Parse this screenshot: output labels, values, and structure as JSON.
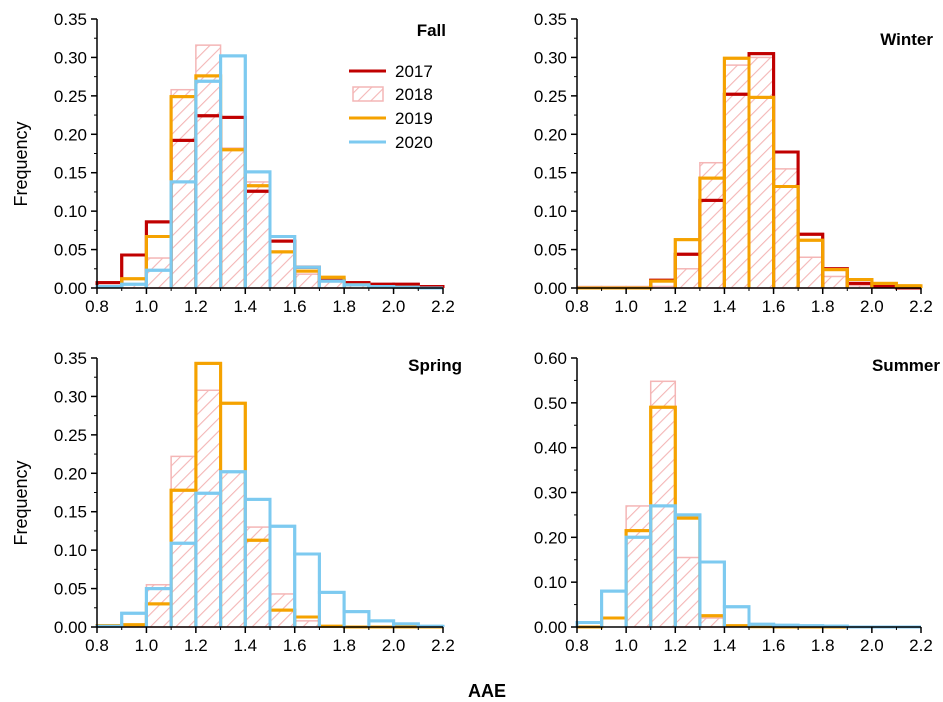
{
  "figure": {
    "xlabel": "AAE",
    "ylabel": "Frequency"
  },
  "colors": {
    "2017": "#c00000",
    "2018": "#f4b6b6",
    "2019": "#f5a200",
    "2020": "#7dcaf0"
  },
  "chart_data": [
    {
      "type": "bar",
      "title": "Fall",
      "xlim": [
        0.8,
        2.2
      ],
      "ylim": [
        0,
        0.35
      ],
      "xticks": [
        "0.8",
        "1.0",
        "1.2",
        "1.4",
        "1.6",
        "1.8",
        "2.0",
        "2.2"
      ],
      "yticks": [
        "0.00",
        "0.05",
        "0.10",
        "0.15",
        "0.20",
        "0.25",
        "0.30",
        "0.35"
      ],
      "bin_edges": [
        0.8,
        0.9,
        1.0,
        1.1,
        1.2,
        1.3,
        1.4,
        1.5,
        1.6,
        1.7,
        1.8,
        1.9,
        2.0,
        2.1,
        2.2
      ],
      "legend": [
        "2017",
        "2018",
        "2019",
        "2020"
      ],
      "series": [
        {
          "name": "2018",
          "values": [
            0.0,
            0.005,
            0.039,
            0.258,
            0.316,
            0.182,
            0.138,
            0.048,
            0.018,
            0.008,
            0.004,
            0.002,
            0.001,
            0.0
          ]
        },
        {
          "name": "2017",
          "values": [
            0.007,
            0.043,
            0.086,
            0.192,
            0.224,
            0.222,
            0.126,
            0.061,
            0.027,
            0.01,
            0.007,
            0.005,
            0.005,
            0.002
          ]
        },
        {
          "name": "2019",
          "values": [
            0.002,
            0.012,
            0.067,
            0.249,
            0.276,
            0.18,
            0.133,
            0.047,
            0.022,
            0.014,
            0.004,
            0.002,
            0.001,
            0.0
          ]
        },
        {
          "name": "2020",
          "values": [
            0.002,
            0.005,
            0.023,
            0.138,
            0.269,
            0.302,
            0.151,
            0.067,
            0.027,
            0.009,
            0.004,
            0.002,
            0.001,
            0.0
          ]
        }
      ]
    },
    {
      "type": "bar",
      "title": "Winter",
      "xlim": [
        0.8,
        2.2
      ],
      "ylim": [
        0,
        0.35
      ],
      "xticks": [
        "0.8",
        "1.0",
        "1.2",
        "1.4",
        "1.6",
        "1.8",
        "2.0",
        "2.2"
      ],
      "yticks": [
        "0.00",
        "0.05",
        "0.10",
        "0.15",
        "0.20",
        "0.25",
        "0.30",
        "0.35"
      ],
      "bin_edges": [
        0.8,
        0.9,
        1.0,
        1.1,
        1.2,
        1.3,
        1.4,
        1.5,
        1.6,
        1.7,
        1.8,
        1.9,
        2.0,
        2.1,
        2.2
      ],
      "series": [
        {
          "name": "2018",
          "values": [
            0.002,
            0.002,
            0.002,
            0.002,
            0.025,
            0.163,
            0.29,
            0.3,
            0.155,
            0.04,
            0.015,
            0.003,
            0.002,
            0.0
          ]
        },
        {
          "name": "2017",
          "values": [
            0.0,
            0.0,
            0.0,
            0.01,
            0.044,
            0.114,
            0.252,
            0.305,
            0.177,
            0.07,
            0.025,
            0.006,
            0.002,
            0.0
          ]
        },
        {
          "name": "2019",
          "values": [
            0.0,
            0.0,
            0.0,
            0.009,
            0.063,
            0.143,
            0.299,
            0.248,
            0.132,
            0.062,
            0.024,
            0.011,
            0.006,
            0.003
          ]
        }
      ]
    },
    {
      "type": "bar",
      "title": "Spring",
      "xlim": [
        0.8,
        2.2
      ],
      "ylim": [
        0,
        0.35
      ],
      "xticks": [
        "0.8",
        "1.0",
        "1.2",
        "1.4",
        "1.6",
        "1.8",
        "2.0",
        "2.2"
      ],
      "yticks": [
        "0.00",
        "0.05",
        "0.10",
        "0.15",
        "0.20",
        "0.25",
        "0.30",
        "0.35"
      ],
      "bin_edges": [
        0.8,
        0.9,
        1.0,
        1.1,
        1.2,
        1.3,
        1.4,
        1.5,
        1.6,
        1.7,
        1.8,
        1.9,
        2.0,
        2.1,
        2.2
      ],
      "series": [
        {
          "name": "2018",
          "values": [
            0.0,
            0.003,
            0.055,
            0.222,
            0.308,
            0.202,
            0.13,
            0.043,
            0.008,
            0.001,
            0.0,
            0.0,
            0.0,
            0.0
          ]
        },
        {
          "name": "2019",
          "values": [
            0.002,
            0.003,
            0.03,
            0.178,
            0.343,
            0.291,
            0.113,
            0.022,
            0.013,
            0.001,
            0.0,
            0.0,
            0.0,
            0.0
          ]
        },
        {
          "name": "2020",
          "values": [
            0.001,
            0.018,
            0.05,
            0.109,
            0.174,
            0.202,
            0.166,
            0.131,
            0.095,
            0.045,
            0.02,
            0.008,
            0.004,
            0.001
          ]
        }
      ]
    },
    {
      "type": "bar",
      "title": "Summer",
      "xlim": [
        0.8,
        2.2
      ],
      "ylim": [
        0,
        0.6
      ],
      "xticks": [
        "0.8",
        "1.0",
        "1.2",
        "1.4",
        "1.6",
        "1.8",
        "2.0",
        "2.2"
      ],
      "yticks": [
        "0.00",
        "0.10",
        "0.20",
        "0.30",
        "0.40",
        "0.50",
        "0.60"
      ],
      "bin_edges": [
        0.8,
        0.9,
        1.0,
        1.1,
        1.2,
        1.3,
        1.4,
        1.5,
        1.6,
        1.7,
        1.8,
        1.9,
        2.0,
        2.1,
        2.2
      ],
      "series": [
        {
          "name": "2018",
          "values": [
            0.0,
            0.0,
            0.27,
            0.548,
            0.155,
            0.02,
            0.004,
            0.002,
            0.0,
            0.0,
            0.0,
            0.0,
            0.0,
            0.0
          ]
        },
        {
          "name": "2019",
          "values": [
            0.0,
            0.02,
            0.215,
            0.49,
            0.243,
            0.025,
            0.003,
            0.001,
            0.0,
            0.0,
            0.0,
            0.0,
            0.0,
            0.0
          ]
        },
        {
          "name": "2020",
          "values": [
            0.01,
            0.08,
            0.2,
            0.27,
            0.25,
            0.145,
            0.045,
            0.006,
            0.004,
            0.003,
            0.002,
            0.0,
            0.0,
            0.0
          ]
        }
      ]
    }
  ]
}
